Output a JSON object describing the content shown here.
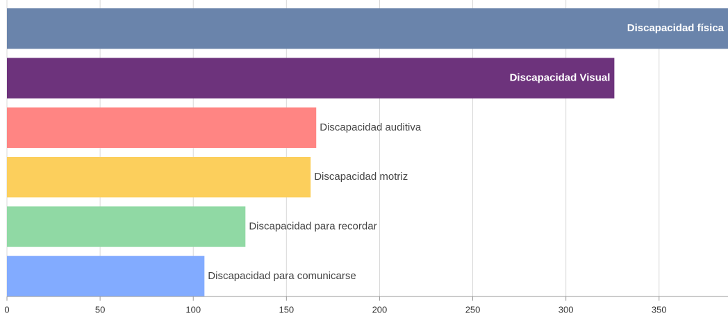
{
  "chart_data": {
    "type": "bar",
    "orientation": "horizontal",
    "categories": [
      "Discapacidad física",
      "Discapacidad Visual",
      "Discapacidad auditiva",
      "Discapacidad motriz",
      "Discapacidad para recordar",
      "Discapacidad para comunicarse"
    ],
    "values": [
      387,
      326,
      166,
      163,
      128,
      106
    ],
    "colors": [
      "#6a84ab",
      "#6d337c",
      "#ff8583",
      "#fccf5c",
      "#90d9a4",
      "#82abff"
    ],
    "xlim": [
      0,
      387
    ],
    "xticks": [
      0,
      50,
      100,
      150,
      200,
      250,
      300,
      350
    ],
    "grid": true
  }
}
